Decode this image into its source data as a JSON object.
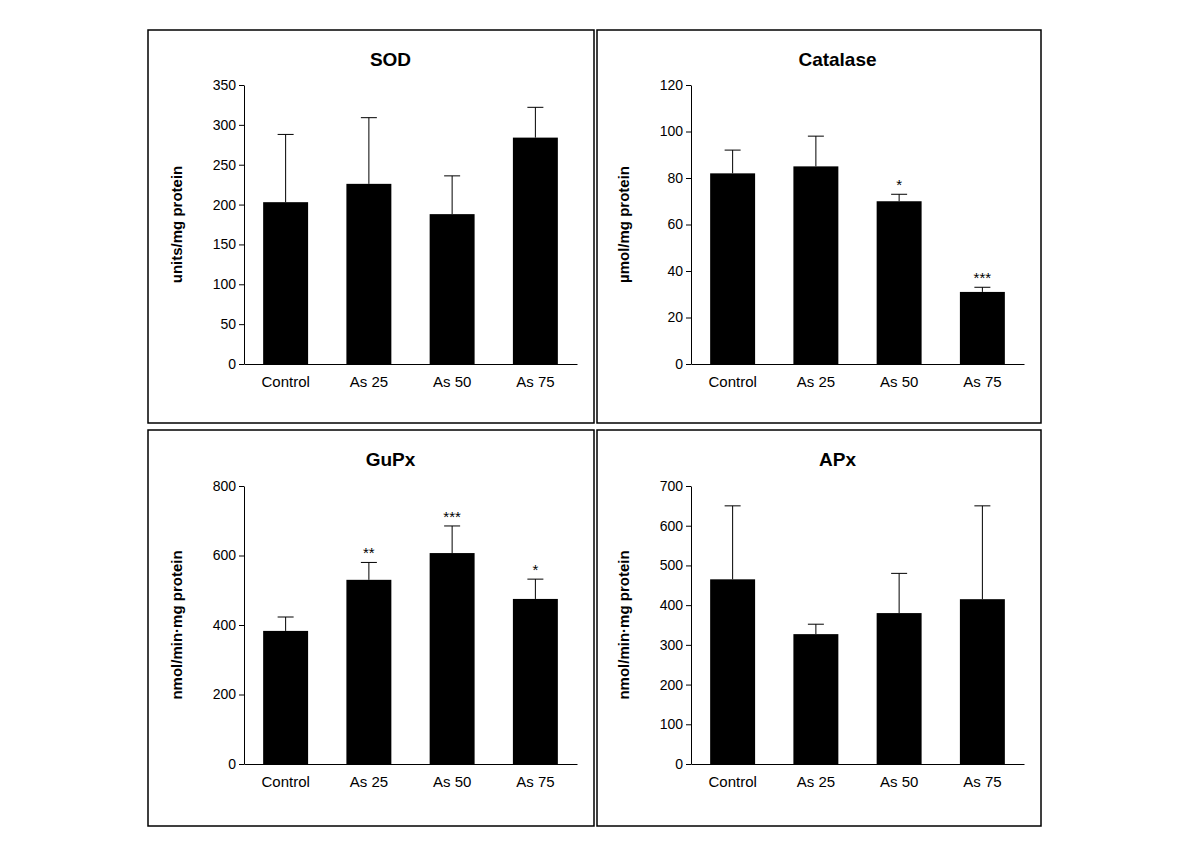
{
  "chart_data": [
    {
      "type": "bar",
      "title": "SOD",
      "y_label": "units/mg protein",
      "categories": [
        "Control",
        "As 25",
        "As 50",
        "As 75"
      ],
      "values": [
        203,
        226,
        188,
        284
      ],
      "errors": [
        85,
        83,
        48,
        38
      ],
      "color": "#000000",
      "ylim": [
        0,
        350
      ],
      "yticks": [
        0,
        50,
        100,
        150,
        200,
        250,
        300,
        350
      ]
    },
    {
      "type": "bar",
      "title": "Catalase",
      "y_label": "µmol/mg protein",
      "categories": [
        "Control",
        "As 25",
        "As 50",
        "As 75"
      ],
      "values": [
        82,
        85,
        70,
        31
      ],
      "errors": [
        10,
        13,
        3,
        2
      ],
      "significance": [
        null,
        null,
        "*",
        "***"
      ],
      "color": "#000000",
      "ylim": [
        0,
        120
      ],
      "yticks": [
        0,
        20,
        40,
        60,
        80,
        100,
        120
      ]
    },
    {
      "type": "bar",
      "title": "GuPx",
      "y_label": "nmol/min·mg protein",
      "categories": [
        "Control",
        "As 25",
        "As 50",
        "As 75"
      ],
      "values": [
        383,
        530,
        607,
        475
      ],
      "errors": [
        40,
        50,
        78,
        57
      ],
      "significance": [
        null,
        "**",
        "***",
        "*"
      ],
      "color": "#000000",
      "ylim": [
        0,
        800
      ],
      "yticks": [
        0,
        200,
        400,
        600,
        800
      ]
    },
    {
      "type": "bar",
      "title": "APx",
      "y_label": "nmol/min·mg protein",
      "categories": [
        "Control",
        "As 25",
        "As 50",
        "As 75"
      ],
      "values": [
        465,
        327,
        380,
        415
      ],
      "errors": [
        185,
        25,
        100,
        235
      ],
      "color": "#000000",
      "ylim": [
        0,
        700
      ],
      "yticks": [
        0,
        100,
        200,
        300,
        400,
        500,
        600,
        700
      ]
    }
  ]
}
